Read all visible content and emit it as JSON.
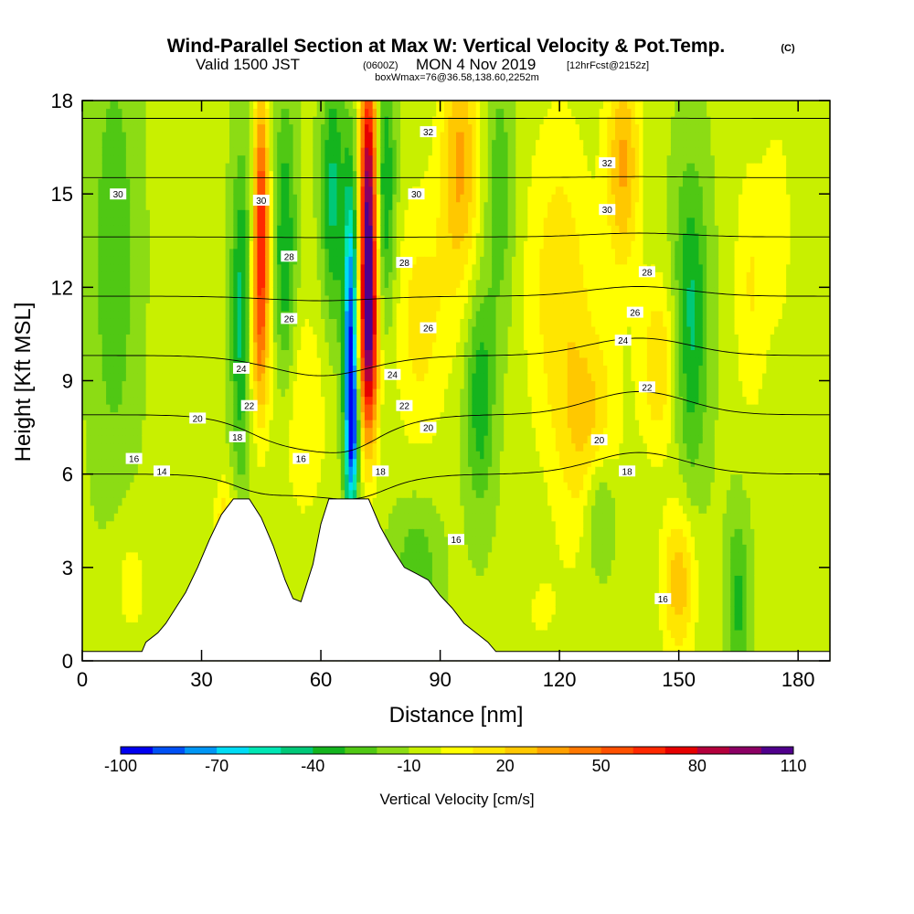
{
  "header": {
    "title": "Wind-Parallel Section at Max W: Vertical Velocity & Pot.Temp.",
    "copyright": "(C)",
    "valid_prefix": "Valid 1500 JST",
    "valid_zulu": "(0600Z)",
    "valid_date": "MON 4 Nov 2019",
    "forecast": "[12hrFcst@2152z]",
    "box_info": "boxWmax=76@36.58,138.60,2252m"
  },
  "chart_data": {
    "type": "heatmap",
    "title": "Wind-Parallel Section at Max W: Vertical Velocity & Pot.Temp.",
    "xlabel": "Distance [nm]",
    "ylabel": "Height [Kft MSL]",
    "xlim": [
      0,
      188
    ],
    "ylim": [
      0,
      18
    ],
    "x_ticks": [
      0,
      30,
      60,
      90,
      120,
      150,
      180
    ],
    "x_tick_labels": [
      "0",
      "30",
      "60",
      "90",
      "120",
      "150",
      "180"
    ],
    "y_ticks": [
      0,
      3,
      6,
      9,
      12,
      15,
      18
    ],
    "y_tick_labels": [
      "0",
      "3",
      "6",
      "9",
      "12",
      "15",
      "18"
    ],
    "colorbar": {
      "title": "Vertical Velocity [cm/s]",
      "labels": [
        "-100",
        "-70",
        "-40",
        "-10",
        "20",
        "50",
        "80",
        "110"
      ],
      "label_values": [
        -100,
        -70,
        -40,
        -10,
        20,
        50,
        80,
        110
      ],
      "min": -100,
      "max": 110,
      "colors": [
        "#0000f0",
        "#0050f5",
        "#0096f5",
        "#00dcf5",
        "#00e6b4",
        "#00c878",
        "#14b41e",
        "#50c814",
        "#8cdc14",
        "#c8f000",
        "#ffff00",
        "#ffe600",
        "#ffc800",
        "#ffa000",
        "#ff7800",
        "#ff5000",
        "#ff2800",
        "#e60000",
        "#b4003c",
        "#8c0064",
        "#50008c"
      ]
    },
    "fields": {
      "background_w": -8,
      "hotspots": [
        {
          "x": 72,
          "y": 14,
          "sx": 1.6,
          "sy": 4.0,
          "w": 115
        },
        {
          "x": 72,
          "y": 10,
          "sx": 1.8,
          "sy": 2.0,
          "w": 45
        },
        {
          "x": 67.5,
          "y": 10,
          "sx": 1.3,
          "sy": 3.8,
          "w": -85
        },
        {
          "x": 68,
          "y": 7.5,
          "sx": 0.9,
          "sy": 1.4,
          "w": -40
        },
        {
          "x": 76,
          "y": 15,
          "sx": 2.0,
          "sy": 3.0,
          "w": -35
        },
        {
          "x": 63,
          "y": 15,
          "sx": 2.0,
          "sy": 3.0,
          "w": -35
        },
        {
          "x": 45,
          "y": 14,
          "sx": 1.4,
          "sy": 3.0,
          "w": 75
        },
        {
          "x": 44,
          "y": 10,
          "sx": 2.0,
          "sy": 2.0,
          "w": 25
        },
        {
          "x": 40,
          "y": 11,
          "sx": 1.8,
          "sy": 3.5,
          "w": -38
        },
        {
          "x": 51,
          "y": 13,
          "sx": 2.0,
          "sy": 3.5,
          "w": -32
        },
        {
          "x": 55,
          "y": 8,
          "sx": 5.0,
          "sy": 2.5,
          "w": 18
        },
        {
          "x": 95,
          "y": 16,
          "sx": 3.5,
          "sy": 3.0,
          "w": 40
        },
        {
          "x": 85,
          "y": 11,
          "sx": 5.0,
          "sy": 3.0,
          "w": 22
        },
        {
          "x": 100,
          "y": 8.5,
          "sx": 2.5,
          "sy": 2.5,
          "w": -30
        },
        {
          "x": 105,
          "y": 15,
          "sx": 2.5,
          "sy": 3.0,
          "w": -20
        },
        {
          "x": 120,
          "y": 12,
          "sx": 6.0,
          "sy": 4.0,
          "w": 25
        },
        {
          "x": 128,
          "y": 7,
          "sx": 5.0,
          "sy": 2.5,
          "w": 30
        },
        {
          "x": 136,
          "y": 16,
          "sx": 3.0,
          "sy": 2.5,
          "w": 40
        },
        {
          "x": 130,
          "y": 5,
          "sx": 3.0,
          "sy": 1.5,
          "w": -30
        },
        {
          "x": 153,
          "y": 11,
          "sx": 3.0,
          "sy": 3.5,
          "w": -35
        },
        {
          "x": 145,
          "y": 9.5,
          "sx": 3.5,
          "sy": 2.0,
          "w": 28
        },
        {
          "x": 168,
          "y": 12,
          "sx": 3.0,
          "sy": 3.0,
          "w": 18
        },
        {
          "x": 150,
          "y": 2.5,
          "sx": 3.0,
          "sy": 1.8,
          "w": 35
        },
        {
          "x": 165,
          "y": 2,
          "sx": 2.0,
          "sy": 2.0,
          "w": -25
        },
        {
          "x": 115,
          "y": 1.5,
          "sx": 6.0,
          "sy": 1.5,
          "w": 8
        },
        {
          "x": 8,
          "y": 13,
          "sx": 4.0,
          "sy": 5.0,
          "w": -20
        },
        {
          "x": 12,
          "y": 2.5,
          "sx": 4.0,
          "sy": 1.6,
          "w": 12
        },
        {
          "x": 36,
          "y": 4,
          "sx": 2.0,
          "sy": 1.2,
          "w": 30
        },
        {
          "x": 84,
          "y": 3,
          "sx": 4.0,
          "sy": 1.5,
          "w": -20
        },
        {
          "x": 175,
          "y": 14,
          "sx": 3.0,
          "sy": 3.0,
          "w": 12
        }
      ]
    },
    "terrain": [
      [
        0,
        0.3
      ],
      [
        15,
        0.3
      ],
      [
        16,
        0.6
      ],
      [
        19,
        0.9
      ],
      [
        21,
        1.2
      ],
      [
        23,
        1.6
      ],
      [
        26,
        2.2
      ],
      [
        29,
        3.0
      ],
      [
        32,
        3.9
      ],
      [
        35,
        4.7
      ],
      [
        38,
        5.2
      ],
      [
        42,
        5.2
      ],
      [
        45,
        4.6
      ],
      [
        48,
        3.7
      ],
      [
        51,
        2.6
      ],
      [
        53,
        2.0
      ],
      [
        55,
        1.9
      ],
      [
        58,
        3.1
      ],
      [
        60,
        4.4
      ],
      [
        62,
        5.2
      ],
      [
        72,
        5.2
      ],
      [
        75,
        4.3
      ],
      [
        78,
        3.6
      ],
      [
        81,
        3.0
      ],
      [
        84,
        2.8
      ],
      [
        87,
        2.6
      ],
      [
        90,
        2.1
      ],
      [
        93,
        1.7
      ],
      [
        96,
        1.2
      ],
      [
        99,
        0.9
      ],
      [
        102,
        0.6
      ],
      [
        104,
        0.3
      ],
      [
        188,
        0.3
      ]
    ],
    "isentropes": [
      {
        "t": 14,
        "label": "14"
      },
      {
        "t": 16,
        "label": "16"
      },
      {
        "t": 18,
        "label": "18"
      },
      {
        "t": 20,
        "label": "20"
      },
      {
        "t": 22,
        "label": "22"
      },
      {
        "t": 24,
        "label": "24"
      },
      {
        "t": 26,
        "label": "26"
      },
      {
        "t": 28,
        "label": "28"
      },
      {
        "t": 30,
        "label": "30"
      },
      {
        "t": 32,
        "label": "32"
      }
    ],
    "contour_labels": [
      {
        "x": 9,
        "y": 15.0,
        "text": "30"
      },
      {
        "x": 45,
        "y": 14.8,
        "text": "30"
      },
      {
        "x": 87,
        "y": 17.0,
        "text": "32"
      },
      {
        "x": 132,
        "y": 16.0,
        "text": "32"
      },
      {
        "x": 84,
        "y": 15.0,
        "text": "30"
      },
      {
        "x": 132,
        "y": 14.5,
        "text": "30"
      },
      {
        "x": 52,
        "y": 13.0,
        "text": "28"
      },
      {
        "x": 81,
        "y": 12.8,
        "text": "28"
      },
      {
        "x": 142,
        "y": 12.5,
        "text": "28"
      },
      {
        "x": 52,
        "y": 11.0,
        "text": "26"
      },
      {
        "x": 87,
        "y": 10.7,
        "text": "26"
      },
      {
        "x": 139,
        "y": 11.2,
        "text": "26"
      },
      {
        "x": 40,
        "y": 9.4,
        "text": "24"
      },
      {
        "x": 78,
        "y": 9.2,
        "text": "24"
      },
      {
        "x": 136,
        "y": 10.3,
        "text": "24"
      },
      {
        "x": 42,
        "y": 8.2,
        "text": "22"
      },
      {
        "x": 81,
        "y": 8.2,
        "text": "22"
      },
      {
        "x": 142,
        "y": 8.8,
        "text": "22"
      },
      {
        "x": 29,
        "y": 7.8,
        "text": "20"
      },
      {
        "x": 87,
        "y": 7.5,
        "text": "20"
      },
      {
        "x": 130,
        "y": 7.1,
        "text": "20"
      },
      {
        "x": 39,
        "y": 7.2,
        "text": "18"
      },
      {
        "x": 75,
        "y": 6.1,
        "text": "18"
      },
      {
        "x": 137,
        "y": 6.1,
        "text": "18"
      },
      {
        "x": 13,
        "y": 6.5,
        "text": "16"
      },
      {
        "x": 55,
        "y": 6.5,
        "text": "16"
      },
      {
        "x": 94,
        "y": 3.9,
        "text": "16"
      },
      {
        "x": 146,
        "y": 2.0,
        "text": "16"
      },
      {
        "x": 20,
        "y": 6.1,
        "text": "14"
      }
    ]
  }
}
